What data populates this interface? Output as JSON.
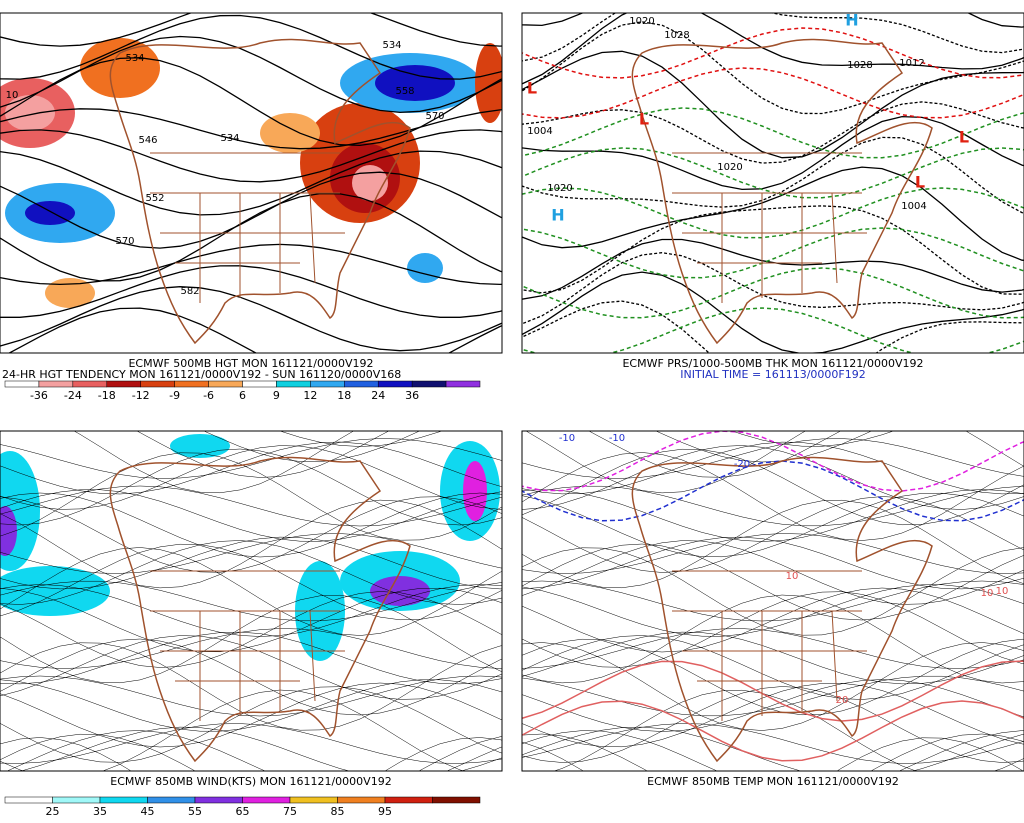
{
  "panels": [
    {
      "caption": [
        "ECMWF 500MB HGT MON 161121/0000V192",
        "24-HR HGT TENDENCY MON 161121/0000V192 - SUN 161120/0000V168"
      ],
      "colorbar": {
        "labels": [
          -36,
          -24,
          -18,
          -12,
          -9,
          -6,
          6,
          9,
          12,
          18,
          24,
          36
        ],
        "colors": [
          "#ffffff",
          "#f4a0a0",
          "#e86060",
          "#b01010",
          "#d84010",
          "#f07020",
          "#f8a858",
          "#ffffff",
          "#10d0e0",
          "#30a8f0",
          "#2060e0",
          "#1010c0",
          "#101070",
          "#9030e0"
        ]
      },
      "contour_labels": [
        "534",
        "534",
        "546",
        "534",
        "558",
        "570",
        "552",
        "570",
        "582",
        "10"
      ]
    },
    {
      "caption": [
        "ECMWF PRS/1000-500MB THK MON 161121/0000V192",
        "INITIAL TIME = 161113/0000F192"
      ],
      "contour_labels": [
        "1020",
        "1028",
        "1004",
        "1020",
        "1004",
        "1012",
        "1028",
        "1020",
        "H",
        "H",
        "L",
        "L",
        "L",
        "L"
      ]
    },
    {
      "caption": [
        "ECMWF 850MB WIND(KTS) MON 161121/0000V192"
      ],
      "colorbar": {
        "labels": [
          25,
          35,
          45,
          55,
          65,
          75,
          85,
          95
        ],
        "colors": [
          "#ffffff",
          "#a0f8f8",
          "#10d8f0",
          "#3090e8",
          "#8030e0",
          "#e020e0",
          "#f0c020",
          "#f08020",
          "#d02010",
          "#801000"
        ]
      }
    },
    {
      "caption": [
        "ECMWF 850MB TEMP MON 161121/0000V192"
      ],
      "contour_labels": [
        "-10",
        "-10",
        "-20",
        "10",
        "10",
        "10",
        "20"
      ]
    }
  ]
}
